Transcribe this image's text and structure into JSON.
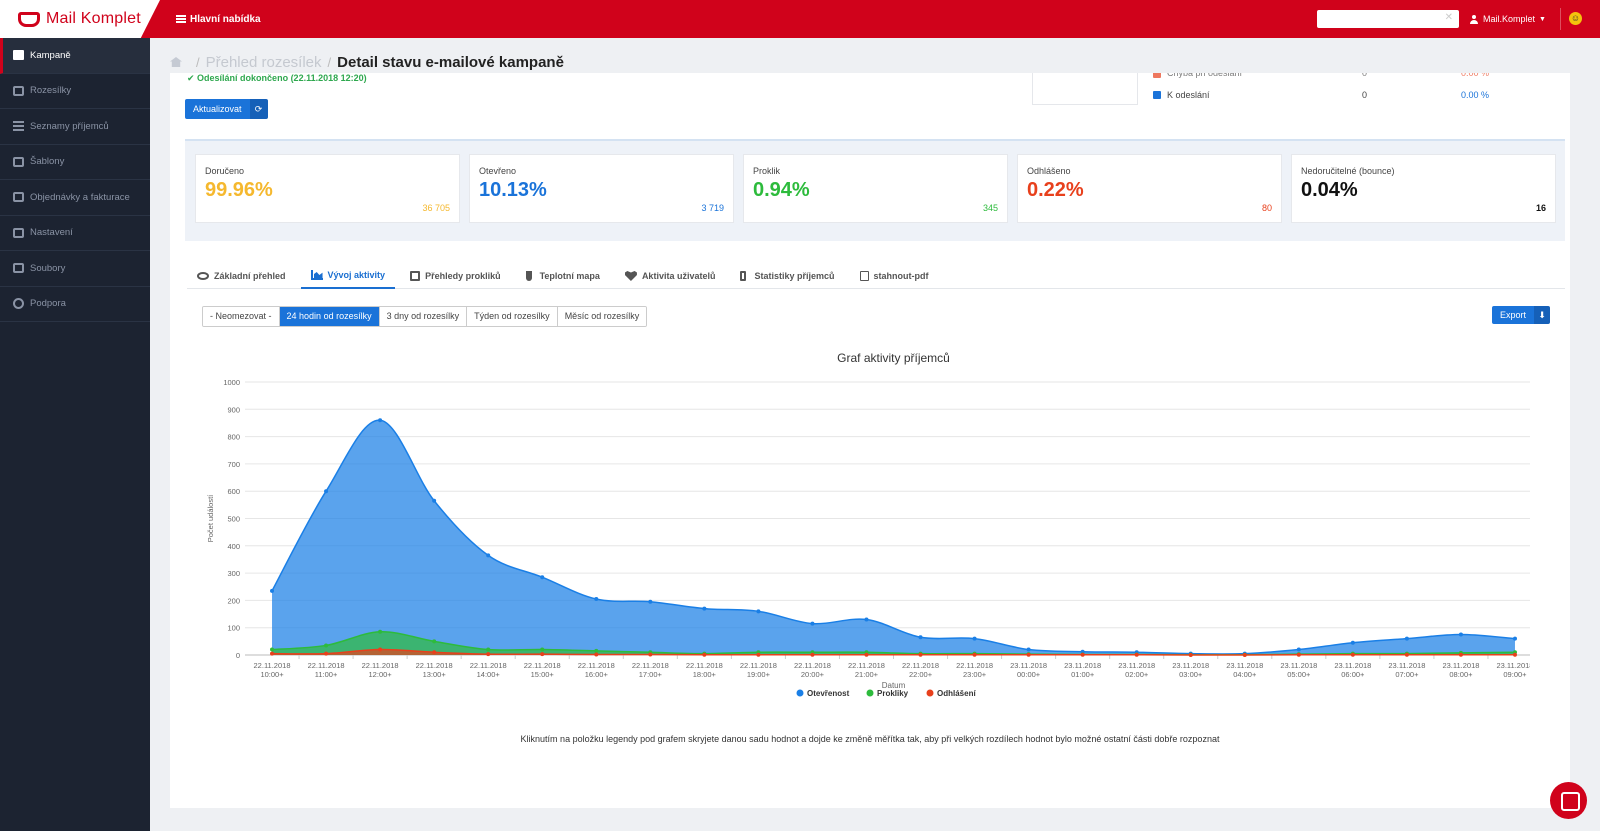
{
  "app": {
    "logo": "Mail Komplet",
    "menu_label": "Hlavní nabídka",
    "user": "Mail.Komplet"
  },
  "sidebar": {
    "items": [
      {
        "label": "Kampaně",
        "icon": "mail-icon",
        "active": true
      },
      {
        "label": "Rozesílky",
        "icon": "sign-out-icon"
      },
      {
        "label": "Seznamy příjemců",
        "icon": "list-icon"
      },
      {
        "label": "Šablony",
        "icon": "edit-icon"
      },
      {
        "label": "Objednávky a fakturace",
        "icon": "credit-card-icon"
      },
      {
        "label": "Nastavení",
        "icon": "cogs-icon"
      },
      {
        "label": "Soubory",
        "icon": "drive-icon"
      },
      {
        "label": "Podpora",
        "icon": "question-icon"
      }
    ]
  },
  "breadcrumb": {
    "parent": "Přehled rozesílek",
    "current": "Detail stavu e-mailové kampaně"
  },
  "status": {
    "text": "Odesílání dokončeno (22.11.2018 12:20)",
    "refresh_label": "Aktualizovat"
  },
  "send_legend": [
    {
      "name": "Chyba při odeslání",
      "count": "0",
      "pct": "0.00 %",
      "color": "#e8401c",
      "pct_color": "#e8401c"
    },
    {
      "name": "K odeslání",
      "count": "0",
      "pct": "0.00 %",
      "color": "#1a73d9",
      "pct_color": "#1a73d9"
    }
  ],
  "stats": [
    {
      "title": "Doručeno",
      "value": "99.96%",
      "count": "36 705",
      "color": "#f5b82e"
    },
    {
      "title": "Otevřeno",
      "value": "10.13%",
      "count": "3 719",
      "color": "#1a73d9"
    },
    {
      "title": "Proklik",
      "value": "0.94%",
      "count": "345",
      "color": "#2dbb3c"
    },
    {
      "title": "Odhlášeno",
      "value": "0.22%",
      "count": "80",
      "color": "#e8401c"
    },
    {
      "title": "Nedoručitelné (bounce)",
      "value": "0.04%",
      "count": "16",
      "color": "#111111"
    }
  ],
  "tabs": [
    {
      "label": "Základní přehled",
      "icon": "eye-icon"
    },
    {
      "label": "Vývoj aktivity",
      "icon": "area-chart-icon",
      "active": true
    },
    {
      "label": "Přehledy prokliků",
      "icon": "external-link-icon"
    },
    {
      "label": "Teplotní mapa",
      "icon": "thermometer-icon"
    },
    {
      "label": "Aktivita uživatelů",
      "icon": "heartbeat-icon"
    },
    {
      "label": "Statistiky příjemců",
      "icon": "mobile-icon"
    },
    {
      "label": "stahnout-pdf",
      "icon": "file-pdf-icon"
    }
  ],
  "ranges": [
    {
      "label": "- Neomezovat -"
    },
    {
      "label": "24 hodin od rozesílky",
      "active": true
    },
    {
      "label": "3 dny od rozesílky"
    },
    {
      "label": "Týden od rozesílky"
    },
    {
      "label": "Měsíc od rozesílky"
    }
  ],
  "export_label": "Export",
  "chart_data": {
    "type": "area",
    "title": "Graf aktivity příjemců",
    "xlabel": "Datum",
    "ylabel": "Počet událostí",
    "ylim": [
      0,
      1000
    ],
    "yticks": [
      0,
      100,
      200,
      300,
      400,
      500,
      600,
      700,
      800,
      900,
      1000
    ],
    "grid": true,
    "legend_position": "bottom",
    "categories": [
      [
        "22.11.2018",
        "10:00+"
      ],
      [
        "22.11.2018",
        "11:00+"
      ],
      [
        "22.11.2018",
        "12:00+"
      ],
      [
        "22.11.2018",
        "13:00+"
      ],
      [
        "22.11.2018",
        "14:00+"
      ],
      [
        "22.11.2018",
        "15:00+"
      ],
      [
        "22.11.2018",
        "16:00+"
      ],
      [
        "22.11.2018",
        "17:00+"
      ],
      [
        "22.11.2018",
        "18:00+"
      ],
      [
        "22.11.2018",
        "19:00+"
      ],
      [
        "22.11.2018",
        "20:00+"
      ],
      [
        "22.11.2018",
        "21:00+"
      ],
      [
        "22.11.2018",
        "22:00+"
      ],
      [
        "22.11.2018",
        "23:00+"
      ],
      [
        "23.11.2018",
        "00:00+"
      ],
      [
        "23.11.2018",
        "01:00+"
      ],
      [
        "23.11.2018",
        "02:00+"
      ],
      [
        "23.11.2018",
        "03:00+"
      ],
      [
        "23.11.2018",
        "04:00+"
      ],
      [
        "23.11.2018",
        "05:00+"
      ],
      [
        "23.11.2018",
        "06:00+"
      ],
      [
        "23.11.2018",
        "07:00+"
      ],
      [
        "23.11.2018",
        "08:00+"
      ],
      [
        "23.11.2018",
        "09:00+"
      ]
    ],
    "series": [
      {
        "name": "Otevřenost",
        "color": "#1a7fe6",
        "values": [
          235,
          600,
          860,
          565,
          365,
          285,
          205,
          195,
          170,
          160,
          115,
          130,
          65,
          60,
          20,
          12,
          10,
          5,
          5,
          20,
          45,
          60,
          75,
          60
        ]
      },
      {
        "name": "Prokliky",
        "color": "#2dbb3c",
        "values": [
          20,
          35,
          85,
          50,
          20,
          20,
          15,
          10,
          5,
          10,
          10,
          10,
          5,
          5,
          3,
          2,
          2,
          1,
          1,
          3,
          5,
          5,
          8,
          10
        ]
      },
      {
        "name": "Odhlášení",
        "color": "#e8401c",
        "values": [
          5,
          5,
          20,
          10,
          3,
          3,
          2,
          2,
          1,
          1,
          1,
          1,
          1,
          1,
          1,
          1,
          1,
          0,
          0,
          1,
          1,
          1,
          1,
          1
        ]
      }
    ]
  },
  "note": "Kliknutím na položku legendy pod grafem skryjete danou sadu hodnot a dojde ke změně měřítka tak, aby při velkých rozdílech hodnot bylo možné ostatní části dobře rozpoznat"
}
